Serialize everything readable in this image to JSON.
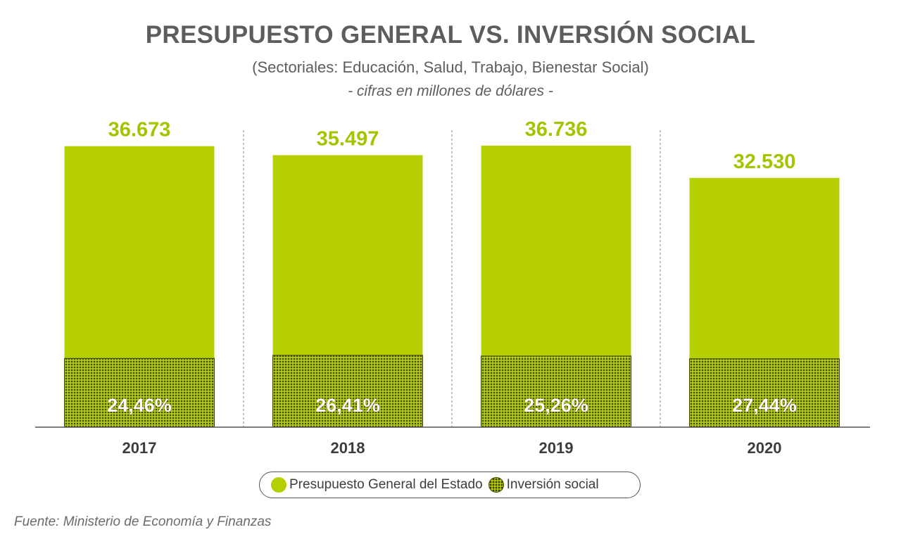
{
  "title": "PRESUPUESTO GENERAL VS. INVERSIÓN SOCIAL",
  "subtitle": "(Sectoriales: Educación, Salud, Trabajo, Bienestar Social)",
  "units": "- cifras en millones de dólares -",
  "source": "Fuente: Ministerio de Economía y Finanzas",
  "colors": {
    "budget": "#b5cf00",
    "social_dots": "#3b3e10",
    "value_label": "#a7c300",
    "axis_label": "#3d3d3f",
    "title": "#5d5d5f"
  },
  "legend": {
    "budget": "Presupuesto General del Estado",
    "social": "Inversión social"
  },
  "chart_data": {
    "type": "bar",
    "categories": [
      "2017",
      "2018",
      "2019",
      "2020"
    ],
    "series": [
      {
        "name": "Presupuesto General del Estado",
        "values": [
          36673,
          35497,
          36736,
          32530
        ],
        "labels": [
          "36.673",
          "35.497",
          "36.736",
          "32.530"
        ]
      },
      {
        "name": "Inversión social",
        "percent_of_budget": [
          24.46,
          26.41,
          25.26,
          27.44
        ],
        "labels": [
          "24,46%",
          "26,41%",
          "25,26%",
          "27,44%"
        ]
      }
    ],
    "ylim": [
      0,
      36736
    ],
    "grid": false,
    "legend_position": "bottom"
  }
}
